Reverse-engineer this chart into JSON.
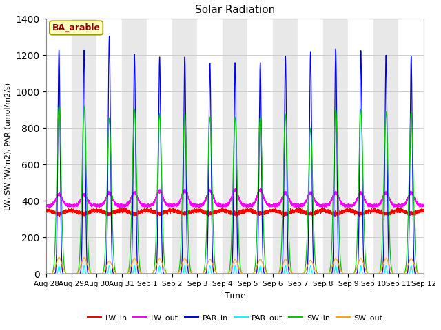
{
  "title": "Solar Radiation",
  "xlabel": "Time",
  "ylabel": "LW, SW (W/m2), PAR (umol/m2/s)",
  "ylim": [
    0,
    1400
  ],
  "annotation": "BA_arable",
  "annotation_color": "#8B0000",
  "annotation_bg": "#FFFFC0",
  "colors": {
    "LW_in": "#FF0000",
    "LW_out": "#FF00FF",
    "PAR_in": "#0000FF",
    "PAR_out": "#00FFFF",
    "SW_in": "#00CC00",
    "SW_out": "#FFA500"
  },
  "n_days": 15,
  "tick_labels": [
    "Aug 28",
    "Aug 29",
    "Aug 30",
    "Aug 31",
    "Sep 1",
    "Sep 2",
    "Sep 3",
    "Sep 4",
    "Sep 5",
    "Sep 6",
    "Sep 7",
    "Sep 8",
    "Sep 9",
    "Sep 10",
    "Sep 11",
    "Sep 12"
  ],
  "bg_even": "#FFFFFF",
  "bg_odd": "#E8E8E8",
  "grid_color": "#CCCCCC"
}
